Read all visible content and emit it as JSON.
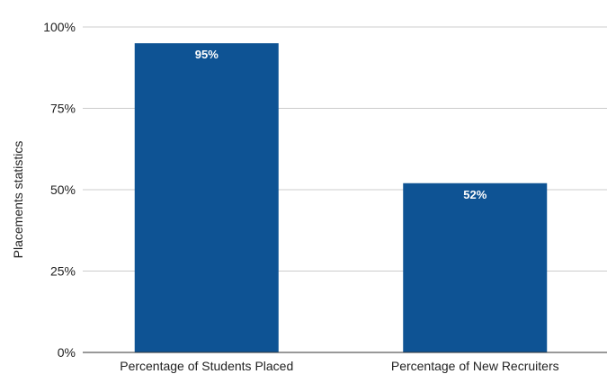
{
  "chart_data": {
    "type": "bar",
    "categories": [
      "Percentage of Students Placed",
      "Percentage of New Recruiters"
    ],
    "values": [
      95,
      52
    ],
    "data_labels": [
      "95%",
      "52%"
    ],
    "ylabel": "Placements statistics",
    "ylim": [
      0,
      100
    ],
    "y_ticks": [
      0,
      25,
      50,
      75,
      100
    ],
    "y_tick_labels": [
      "0%",
      "25%",
      "50%",
      "75%",
      "100%"
    ],
    "grid": true,
    "bar_color": "#0e5394",
    "grid_color": "#cccccc",
    "axis_color": "#333333"
  }
}
